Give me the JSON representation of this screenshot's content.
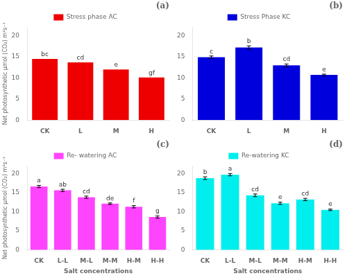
{
  "chart_data": [
    {
      "type": "bar",
      "title": "(a)",
      "categories": [
        "CK",
        "L",
        "M",
        "H"
      ],
      "series": [
        {
          "name": "Stress phase AC",
          "color": "#EE0000",
          "values": [
            14.5,
            13.7,
            12.0,
            10.1
          ]
        }
      ],
      "annotations": [
        "bc",
        "cd",
        "e",
        "gf"
      ],
      "ylabel": "Net photosynthetic μmol (CO₂) m²s⁻¹",
      "ylim": [
        0,
        22
      ],
      "yticks": [
        0,
        5,
        10,
        15,
        20
      ],
      "grid": false,
      "legend": "top"
    },
    {
      "type": "bar",
      "title": "(b)",
      "categories": [
        "CK",
        "L",
        "M",
        "H"
      ],
      "series": [
        {
          "name": "Stress Phase KC",
          "color": "#0000DD",
          "values": [
            14.9,
            17.2,
            13.0,
            10.7
          ],
          "errors": [
            0.3,
            0.4,
            0.3,
            0.2
          ]
        }
      ],
      "annotations": [
        "c",
        "b",
        "cd",
        "e"
      ],
      "ylim": [
        0,
        22
      ],
      "yticks": [
        0,
        5,
        10,
        15,
        20
      ],
      "grid": false,
      "legend": "top"
    },
    {
      "type": "bar",
      "title": "(c)",
      "categories": [
        "CK",
        "L-L",
        "M-L",
        "M-M",
        "H-M",
        "H-H"
      ],
      "series": [
        {
          "name": "Re- watering AC",
          "color": "#FF44FF",
          "values": [
            16.6,
            15.6,
            13.8,
            12.1,
            11.3,
            8.6
          ],
          "errors": [
            0.3,
            0.3,
            0.3,
            0.2,
            0.3,
            0.3
          ]
        }
      ],
      "annotations": [
        "a",
        "ab",
        "cd",
        "de",
        "f",
        "g"
      ],
      "ylabel": "Net photosynthetic μmol (CO₂) m²s⁻¹",
      "xlabel": "Salt concentrations",
      "ylim": [
        0,
        22
      ],
      "yticks": [
        0,
        5,
        10,
        15,
        20
      ],
      "grid": false,
      "legend": "top"
    },
    {
      "type": "bar",
      "title": "(d)",
      "categories": [
        "CK",
        "L-L",
        "M-L",
        "M-M",
        "H-M",
        "H-H"
      ],
      "series": [
        {
          "name": "Re-watering KC",
          "color": "#00EEEE",
          "values": [
            18.8,
            19.7,
            14.3,
            12.2,
            13.2,
            10.5
          ],
          "errors": [
            0.35,
            0.3,
            0.35,
            0.3,
            0.3,
            0.2
          ]
        }
      ],
      "annotations": [
        "b",
        "a",
        "cd",
        "e",
        "cd",
        "e"
      ],
      "xlabel": "Salt concentrations",
      "ylim": [
        0,
        22
      ],
      "yticks": [
        0,
        5,
        10,
        15,
        20
      ],
      "grid": false,
      "legend": "top"
    }
  ]
}
